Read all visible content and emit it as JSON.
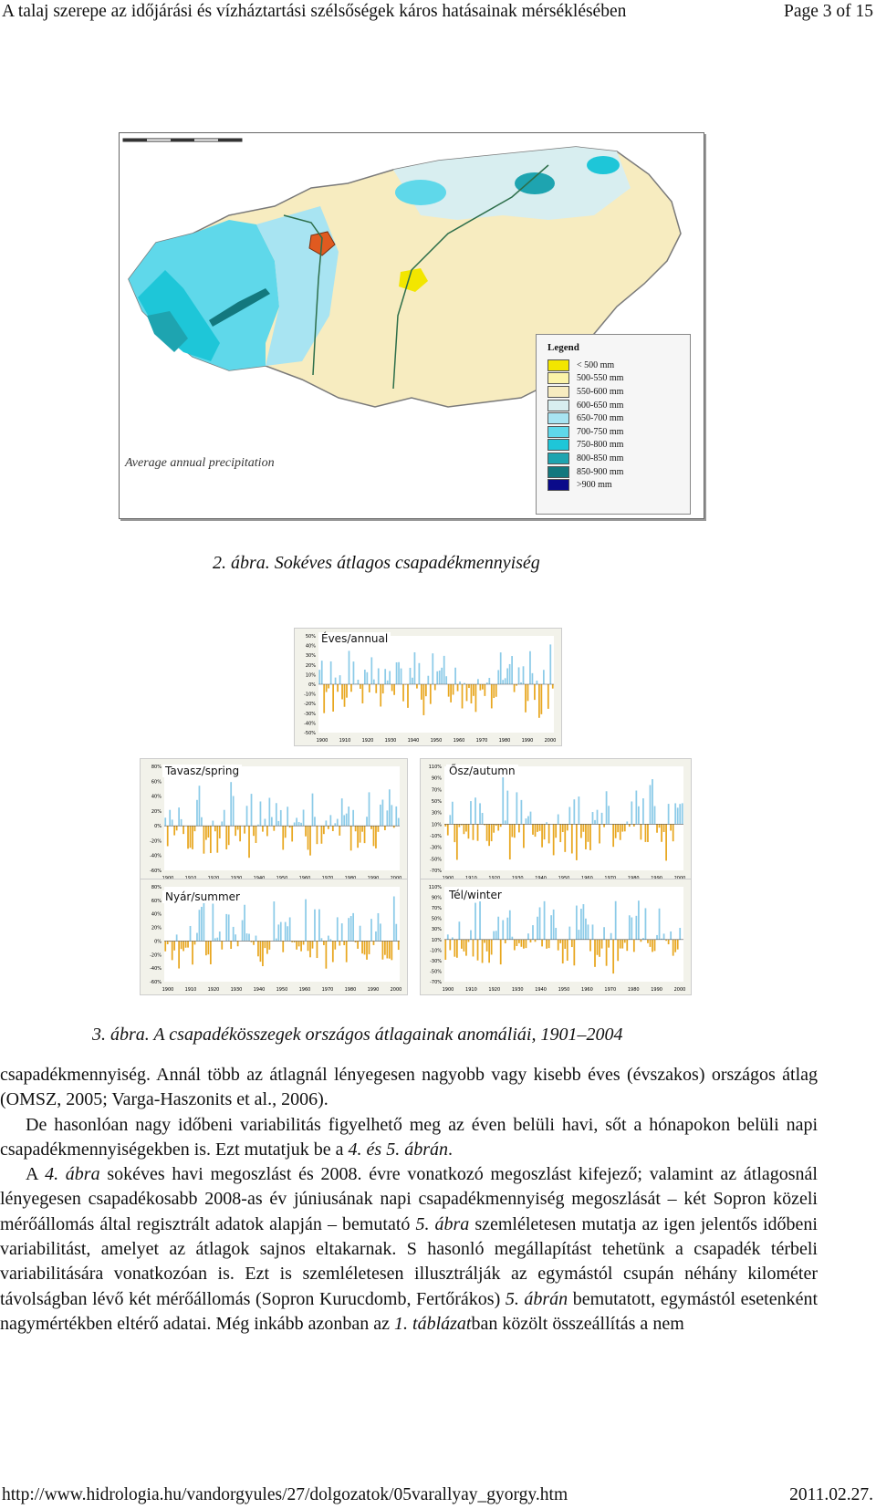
{
  "header": {
    "title": "A talaj szerepe az időjárási és vízháztartási szélsőségek káros hatásainak mérséklésében",
    "page": "Page 3 of 15"
  },
  "figure2": {
    "map_title": "Average annual precipitation",
    "legend_title": "Legend",
    "legend": [
      {
        "label": "< 500 mm",
        "color": "#f2e600"
      },
      {
        "label": "500-550 mm",
        "color": "#fbf3a8"
      },
      {
        "label": "550-600 mm",
        "color": "#f7ecc0"
      },
      {
        "label": "600-650 mm",
        "color": "#d8eef0"
      },
      {
        "label": "650-700 mm",
        "color": "#a8e4f2"
      },
      {
        "label": "700-750 mm",
        "color": "#5fd8ea"
      },
      {
        "label": "750-800 mm",
        "color": "#1ec6d8"
      },
      {
        "label": "800-850 mm",
        "color": "#1ea4b0"
      },
      {
        "label": "850-900 mm",
        "color": "#13787e"
      },
      {
        "label": ">900 mm",
        "color": "#0a0a8a"
      }
    ],
    "caption": "2. ábra. Sokéves átlagos csapadékmennyiség"
  },
  "figure3": {
    "caption": "3. ábra. A csapadékösszegek országos átlagainak anomáliái, 1901–2004",
    "positive_color": "#8ccbe8",
    "negative_color": "#e8a720",
    "charts": [
      {
        "label": "Éves/annual",
        "yticks": [
          "50%",
          "40%",
          "30%",
          "20%",
          "10%",
          "0%",
          "-10%",
          "-20%",
          "-30%",
          "-40%",
          "-50%"
        ],
        "xticks": [
          "1900",
          "1910",
          "1920",
          "1930",
          "1940",
          "1950",
          "1960",
          "1970",
          "1980",
          "1990",
          "2000"
        ]
      },
      {
        "label": "Tavasz/spring",
        "yticks": [
          "80%",
          "60%",
          "40%",
          "20%",
          "0%",
          "-20%",
          "-40%",
          "-60%"
        ],
        "xticks": [
          "1900",
          "1910",
          "1920",
          "1930",
          "1940",
          "1950",
          "1960",
          "1970",
          "1980",
          "1990",
          "2000"
        ]
      },
      {
        "label": "Ősz/autumn",
        "yticks": [
          "110%",
          "90%",
          "70%",
          "50%",
          "30%",
          "10%",
          "-10%",
          "-30%",
          "-50%",
          "-70%"
        ],
        "xticks": [
          "1900",
          "1910",
          "1920",
          "1930",
          "1940",
          "1950",
          "1960",
          "1970",
          "1980",
          "1990",
          "2000"
        ]
      },
      {
        "label": "Nyár/summer",
        "yticks": [
          "80%",
          "60%",
          "40%",
          "20%",
          "0%",
          "-20%",
          "-40%",
          "-60%"
        ],
        "xticks": [
          "1900",
          "1910",
          "1920",
          "1930",
          "1940",
          "1950",
          "1960",
          "1970",
          "1980",
          "1990",
          "2000"
        ]
      },
      {
        "label": "Tél/winter",
        "yticks": [
          "110%",
          "90%",
          "70%",
          "50%",
          "30%",
          "10%",
          "-10%",
          "-30%",
          "-50%",
          "-70%"
        ],
        "xticks": [
          "1900",
          "1910",
          "1920",
          "1930",
          "1940",
          "1950",
          "1960",
          "1970",
          "1980",
          "1990",
          "2000"
        ]
      }
    ]
  },
  "body": {
    "p1": "csapadékmennyiség. Annál több az átlagnál lényegesen nagyobb vagy kisebb éves (évszakos) országos átlag (OMSZ, 2005; Varga-Haszonits et al., 2006).",
    "p2a": "De hasonlóan nagy időbeni variabilitás figyelhető meg az éven belüli havi, sőt a hónapokon belüli napi csapadékmennyiségekben is. Ezt mutatjuk be a ",
    "p2b": "4. és 5. ábrán",
    "p2c": ".",
    "p3a": "A ",
    "p3b": "4. ábra",
    "p3c": " sokéves havi megoszlást és 2008. évre vonatkozó megoszlást kifejező; valamint az átlagosnál lényegesen csapadékosabb 2008-as év júniusának napi csapadékmennyiség megoszlását – két Sopron közeli mérőállomás által regisztrált adatok alapján – bemutató ",
    "p3d": "5. ábra",
    "p3e": " szemléletesen mutatja az igen jelentős időbeni variabilitást, amelyet az átlagok sajnos eltakarnak. S hasonló megállapítást tehetünk a csapadék térbeli variabilitására vonatkozóan is. Ezt is szemléletesen illusztrálják az egymástól csupán néhány kilométer távolságban lévő két mérőállomás (Sopron Kurucdomb, Fertőrákos) ",
    "p3f": "5. ábrán",
    "p3g": " bemutatott, egymástól esetenként nagymértékben eltérő adatai. Még inkább azonban az ",
    "p3h": "1. táblázat",
    "p3i": "ban közölt összeállítás a nem"
  },
  "footer": {
    "url": "http://www.hidrologia.hu/vandorgyules/27/dolgozatok/05varallyay_gyorgy.htm",
    "date": "2011.02.27."
  }
}
